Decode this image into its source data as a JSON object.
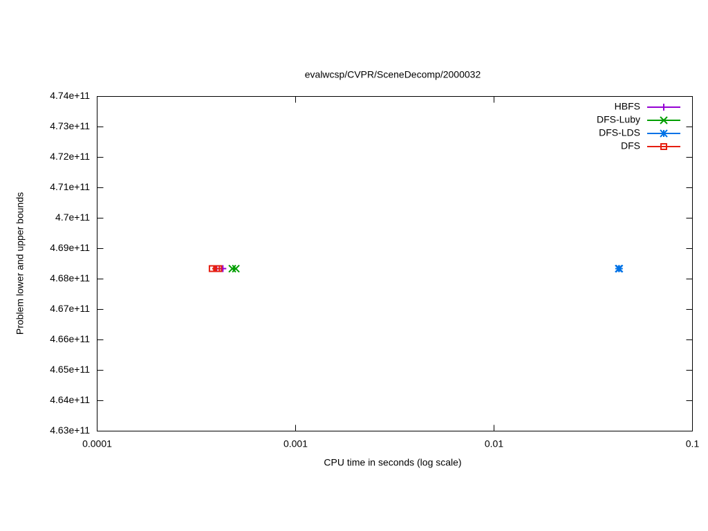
{
  "chart_data": {
    "type": "scatter",
    "title": "evalwcsp/CVPR/SceneDecomp/2000032",
    "xlabel": "CPU time in seconds (log scale)",
    "ylabel": "Problem lower and upper bounds",
    "xscale": "log",
    "xlim": [
      0.0001,
      0.1
    ],
    "xticks": [
      0.0001,
      0.001,
      0.01,
      0.1
    ],
    "ylim": [
      463000000000,
      474000000000
    ],
    "yticks": [
      {
        "value": 463000000000,
        "label": "4.63e+11"
      },
      {
        "value": 464000000000,
        "label": "4.64e+11"
      },
      {
        "value": 465000000000,
        "label": "4.65e+11"
      },
      {
        "value": 466000000000,
        "label": "4.66e+11"
      },
      {
        "value": 467000000000,
        "label": "4.67e+11"
      },
      {
        "value": 468000000000,
        "label": "4.68e+11"
      },
      {
        "value": 469000000000,
        "label": "4.69e+11"
      },
      {
        "value": 470000000000,
        "label": "4.7e+11"
      },
      {
        "value": 471000000000,
        "label": "4.71e+11"
      },
      {
        "value": 472000000000,
        "label": "4.72e+11"
      },
      {
        "value": 473000000000,
        "label": "4.73e+11"
      },
      {
        "value": 474000000000,
        "label": "4.74e+11"
      }
    ],
    "grid": false,
    "legend": "top-right",
    "series": [
      {
        "name": "HBFS",
        "color": "#9400d3",
        "marker": "plus",
        "x": [
          0.0004,
          0.00043
        ],
        "values": [
          468340000000,
          468340000000
        ]
      },
      {
        "name": "DFS-Luby",
        "color": "#009e00",
        "marker": "cross",
        "x": [
          0.00048,
          0.0005
        ],
        "values": [
          468340000000,
          468340000000
        ]
      },
      {
        "name": "DFS-LDS",
        "color": "#0072e6",
        "marker": "star",
        "x": [
          0.0425,
          0.0428
        ],
        "values": [
          468340000000,
          468340000000
        ]
      },
      {
        "name": "DFS",
        "color": "#e51e10",
        "marker": "square",
        "x": [
          0.00038,
          0.0004,
          0.00041
        ],
        "values": [
          468340000000,
          468340000000,
          468340000000
        ]
      }
    ]
  }
}
